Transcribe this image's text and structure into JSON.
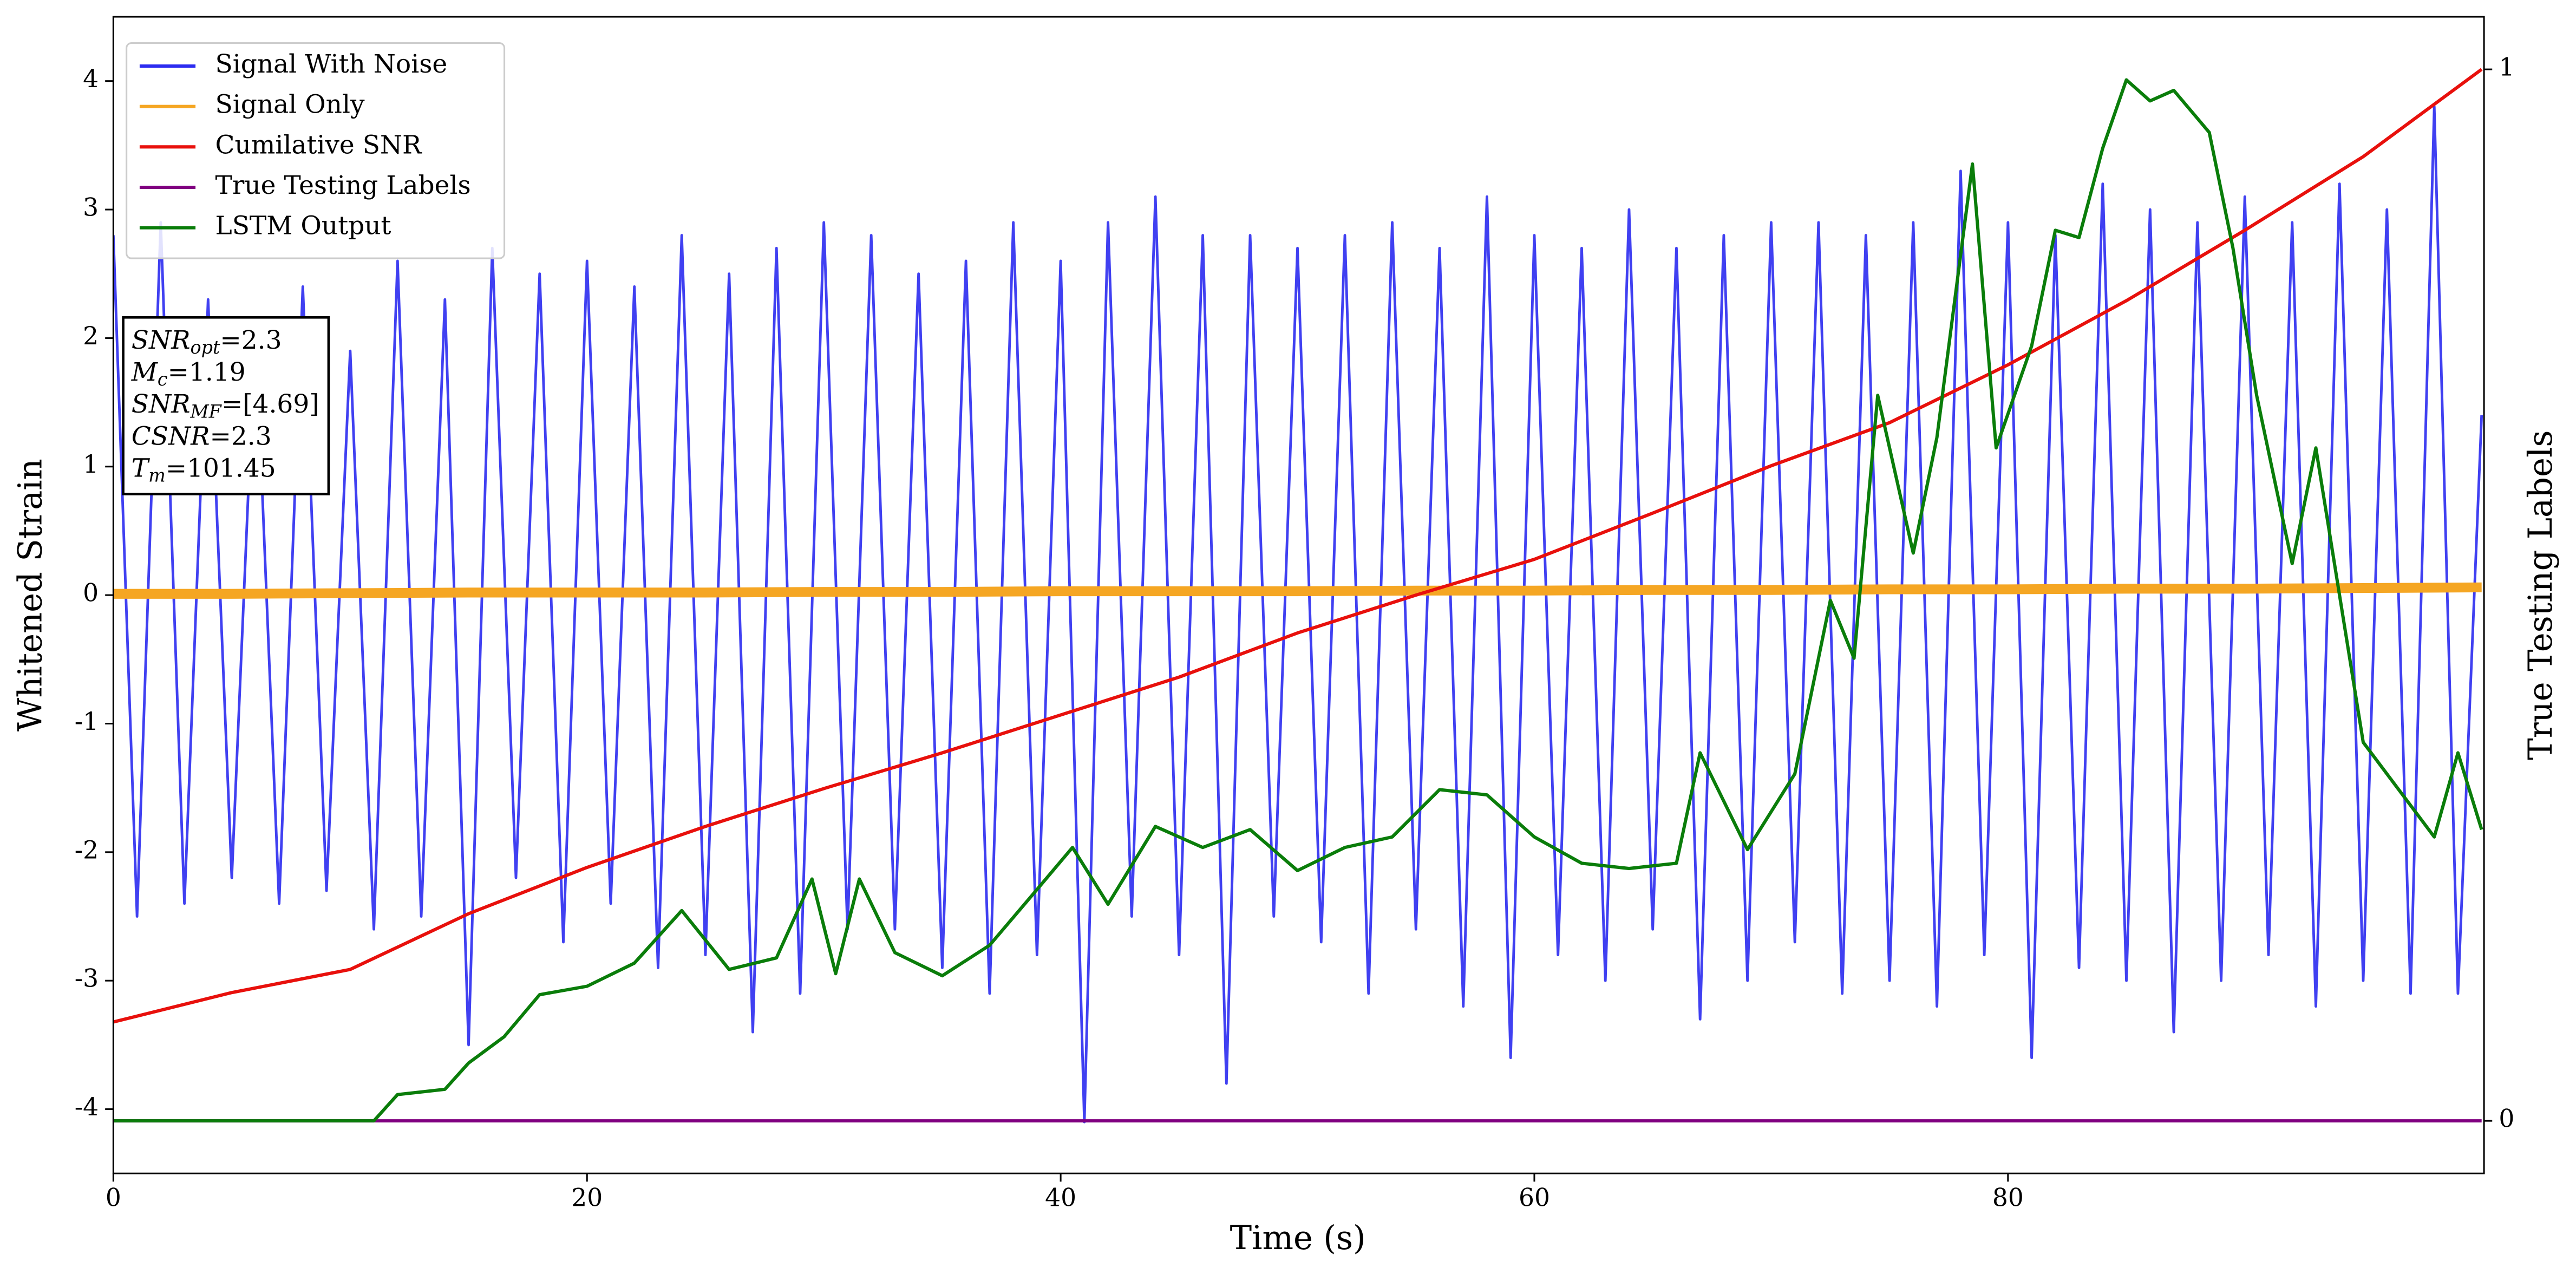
{
  "chart_data": {
    "type": "line",
    "xlabel": "Time (s)",
    "ylabel": "Whitened Strain",
    "y2label": "True Testing Labels",
    "xlim": [
      0,
      100.1
    ],
    "xticks": [
      0,
      20,
      40,
      60,
      80
    ],
    "ylim": [
      -4.5,
      4.5
    ],
    "yticks": [
      -4,
      -3,
      -2,
      -1,
      0,
      1,
      2,
      3,
      4
    ],
    "y2lim": [
      -0.05,
      1.05
    ],
    "y2ticks": [
      0,
      1
    ],
    "legend": "upper left",
    "annotation": [
      {
        "base": "SNR",
        "sub": "opt",
        "rest": "=2.3"
      },
      {
        "base": "M",
        "sub": "c",
        "rest": "=1.19"
      },
      {
        "base": "SNR",
        "sub": "MF",
        "rest": "=[4.69]"
      },
      {
        "base": "CSNR",
        "rest": "=2.3"
      },
      {
        "base": "T",
        "sub": "m",
        "rest": "=101.45"
      }
    ],
    "series": [
      {
        "name": "Signal With Noise",
        "color": "#2b2bf0",
        "axis": "y",
        "x": [
          0,
          1,
          2,
          3,
          4,
          5,
          6,
          7,
          8,
          9,
          10,
          11,
          12,
          13,
          14,
          15,
          16,
          17,
          18,
          19,
          20,
          21,
          22,
          23,
          24,
          25,
          26,
          27,
          28,
          29,
          30,
          31,
          32,
          33,
          34,
          35,
          36,
          37,
          38,
          39,
          40,
          41,
          42,
          43,
          44,
          45,
          46,
          47,
          48,
          49,
          50,
          51,
          52,
          53,
          54,
          55,
          56,
          57,
          58,
          59,
          60,
          61,
          62,
          63,
          64,
          65,
          66,
          67,
          68,
          69,
          70,
          71,
          72,
          73,
          74,
          75,
          76,
          77,
          78,
          79,
          80,
          81,
          82,
          83,
          84,
          85,
          86,
          87,
          88,
          89,
          90,
          91,
          92,
          93,
          94,
          95,
          96,
          97,
          98,
          99,
          100
        ],
        "values": [
          2.8,
          -2.5,
          2.9,
          -2.4,
          2.3,
          -2.2,
          2.1,
          -2.4,
          2.4,
          -2.3,
          1.9,
          -2.6,
          2.6,
          -2.5,
          2.3,
          -3.5,
          2.7,
          -2.2,
          2.5,
          -2.7,
          2.6,
          -2.4,
          2.4,
          -2.9,
          2.8,
          -2.8,
          2.5,
          -3.4,
          2.7,
          -3.1,
          2.9,
          -2.6,
          2.8,
          -2.6,
          2.5,
          -2.9,
          2.6,
          -3.1,
          2.9,
          -2.8,
          2.6,
          -4.1,
          2.9,
          -2.5,
          3.1,
          -2.8,
          2.8,
          -3.8,
          2.8,
          -2.5,
          2.7,
          -2.7,
          2.8,
          -3.1,
          2.9,
          -2.6,
          2.7,
          -3.2,
          3.1,
          -3.6,
          2.8,
          -2.8,
          2.7,
          -3.0,
          3.0,
          -2.6,
          2.7,
          -3.3,
          2.8,
          -3.0,
          2.9,
          -2.7,
          2.9,
          -3.1,
          2.8,
          -3.0,
          2.9,
          -3.2,
          3.3,
          -2.8,
          2.9,
          -3.6,
          2.8,
          -2.9,
          3.2,
          -3.0,
          3.0,
          -3.4,
          2.9,
          -3.0,
          3.1,
          -2.8,
          2.9,
          -3.2,
          3.2,
          -3.0,
          3.0,
          -3.1,
          3.8,
          -3.1,
          1.4
        ]
      },
      {
        "name": "Signal Only",
        "color": "#f5a623",
        "axis": "y",
        "x": [
          0,
          5,
          10,
          15,
          20,
          25,
          30,
          35,
          40,
          45,
          50,
          55,
          60,
          65,
          70,
          75,
          80,
          85,
          90,
          95,
          100
        ],
        "values": [
          0.01,
          0.01,
          0.015,
          0.02,
          0.02,
          0.02,
          0.025,
          0.025,
          0.03,
          0.03,
          0.03,
          0.035,
          0.035,
          0.04,
          0.04,
          0.045,
          0.045,
          0.05,
          0.05,
          0.055,
          0.06
        ]
      },
      {
        "name": "Cumilative SNR",
        "color": "#e8100c",
        "axis": "y2",
        "x": [
          0,
          5,
          10,
          15,
          20,
          25,
          30,
          35,
          40,
          45,
          50,
          55,
          60,
          65,
          70,
          75,
          80,
          85,
          90,
          95,
          100
        ],
        "values": [
          0.094,
          0.122,
          0.144,
          0.197,
          0.241,
          0.28,
          0.316,
          0.35,
          0.386,
          0.422,
          0.464,
          0.5,
          0.534,
          0.578,
          0.623,
          0.664,
          0.719,
          0.78,
          0.847,
          0.917,
          1.0
        ]
      },
      {
        "name": "True Testing Labels",
        "color": "#800080",
        "axis": "y2",
        "x": [
          0,
          100
        ],
        "values": [
          0,
          0
        ]
      },
      {
        "name": "LSTM Output",
        "color": "#0a7d0a",
        "axis": "y2",
        "x": [
          0,
          11,
          12,
          14,
          15,
          16.5,
          18,
          20,
          22,
          24,
          26,
          28,
          29.5,
          30.5,
          31.5,
          33,
          35,
          37,
          39,
          40.5,
          42,
          44,
          46,
          48,
          50,
          52,
          54,
          56,
          58,
          60,
          62,
          64,
          66,
          67,
          69,
          71,
          72.5,
          73.5,
          74.5,
          76,
          77,
          78.5,
          79.5,
          81,
          82,
          83,
          84,
          85,
          86,
          87,
          88.5,
          89.5,
          90.5,
          92,
          93,
          94,
          95,
          96.5,
          98,
          99,
          100
        ],
        "values": [
          0,
          0,
          0.025,
          0.03,
          0.055,
          0.08,
          0.12,
          0.128,
          0.15,
          0.2,
          0.144,
          0.155,
          0.23,
          0.14,
          0.23,
          0.16,
          0.138,
          0.167,
          0.22,
          0.26,
          0.206,
          0.28,
          0.26,
          0.277,
          0.238,
          0.26,
          0.27,
          0.315,
          0.31,
          0.27,
          0.245,
          0.24,
          0.245,
          0.35,
          0.258,
          0.33,
          0.495,
          0.44,
          0.69,
          0.54,
          0.65,
          0.91,
          0.64,
          0.737,
          0.847,
          0.84,
          0.925,
          0.99,
          0.97,
          0.98,
          0.94,
          0.83,
          0.69,
          0.53,
          0.64,
          0.5,
          0.36,
          0.315,
          0.27,
          0.35,
          0.277
        ]
      }
    ]
  }
}
